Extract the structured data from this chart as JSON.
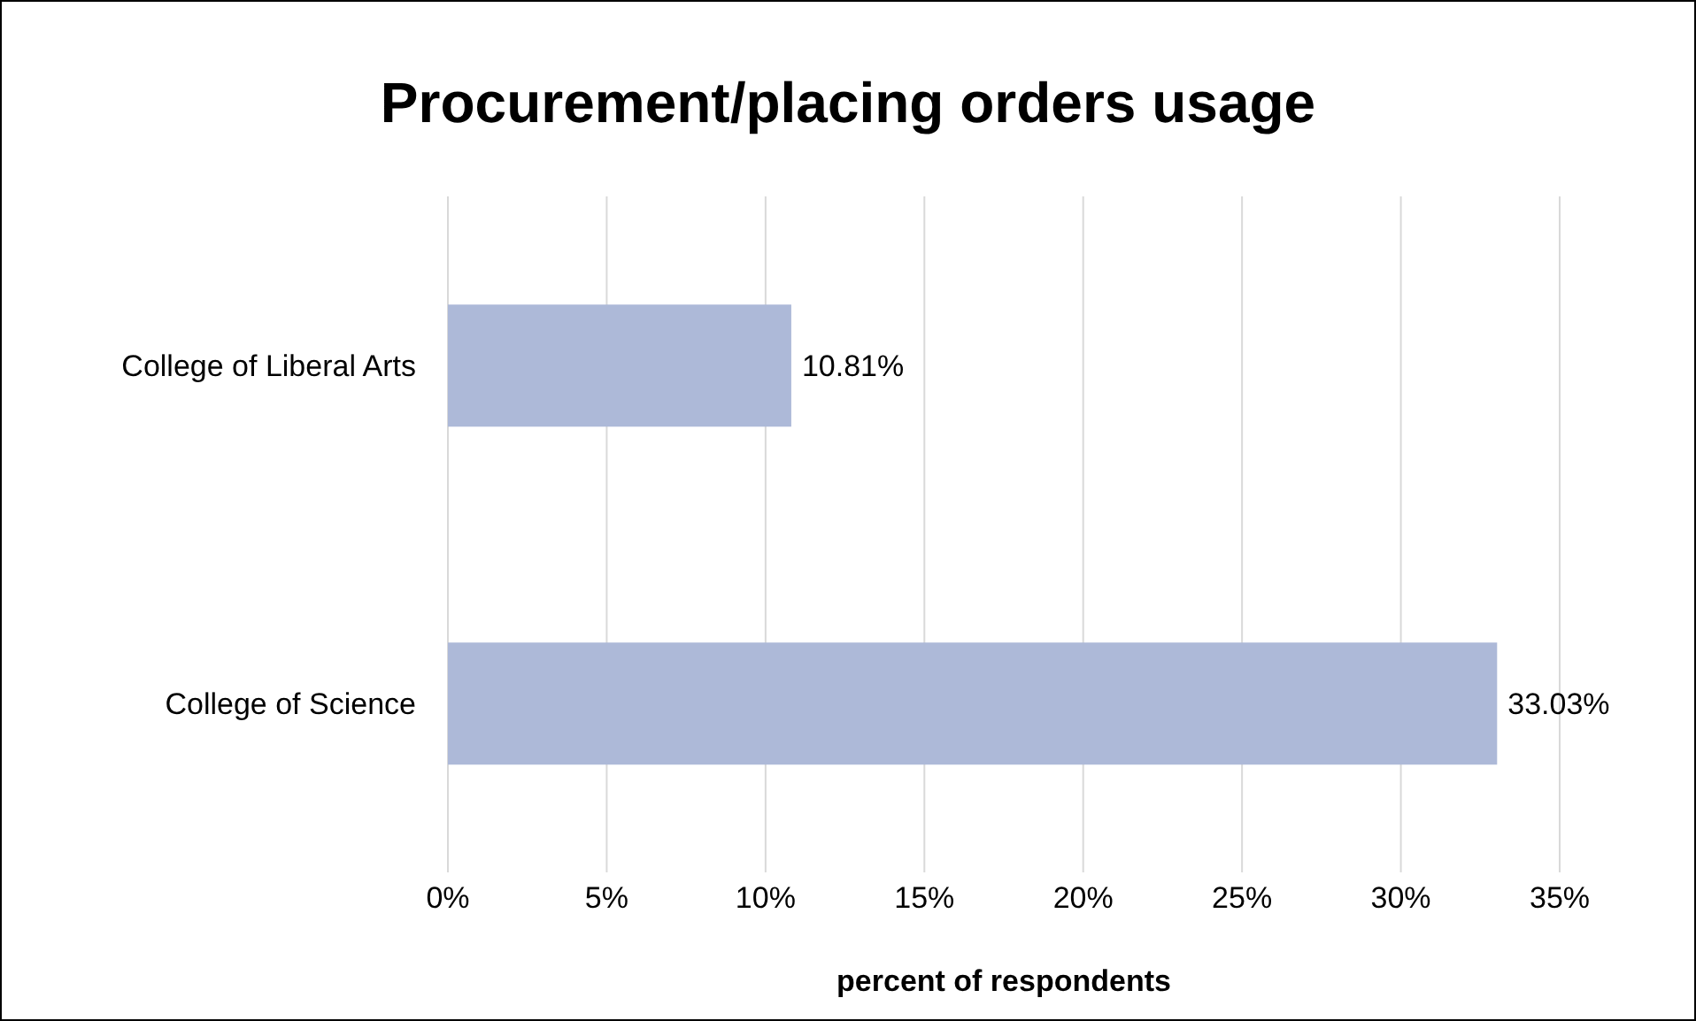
{
  "chart_data": {
    "type": "bar",
    "orientation": "horizontal",
    "title": "Procurement/placing orders usage",
    "xlabel": "percent of respondents",
    "categories": [
      "College of Liberal Arts",
      "College of Science"
    ],
    "values": [
      10.81,
      33.03
    ],
    "color": "#adb9d8",
    "value_labels": [
      "10.81%",
      "33.03%"
    ],
    "xlim": [
      0,
      35
    ],
    "xticks": [
      {
        "value": 0,
        "label": "0%"
      },
      {
        "value": 5,
        "label": "5%"
      },
      {
        "value": 10,
        "label": "10%"
      },
      {
        "value": 15,
        "label": "15%"
      },
      {
        "value": 20,
        "label": "20%"
      },
      {
        "value": 25,
        "label": "25%"
      },
      {
        "value": 30,
        "label": "30%"
      },
      {
        "value": 35,
        "label": "35%"
      }
    ],
    "grid": "x",
    "legend": false
  }
}
